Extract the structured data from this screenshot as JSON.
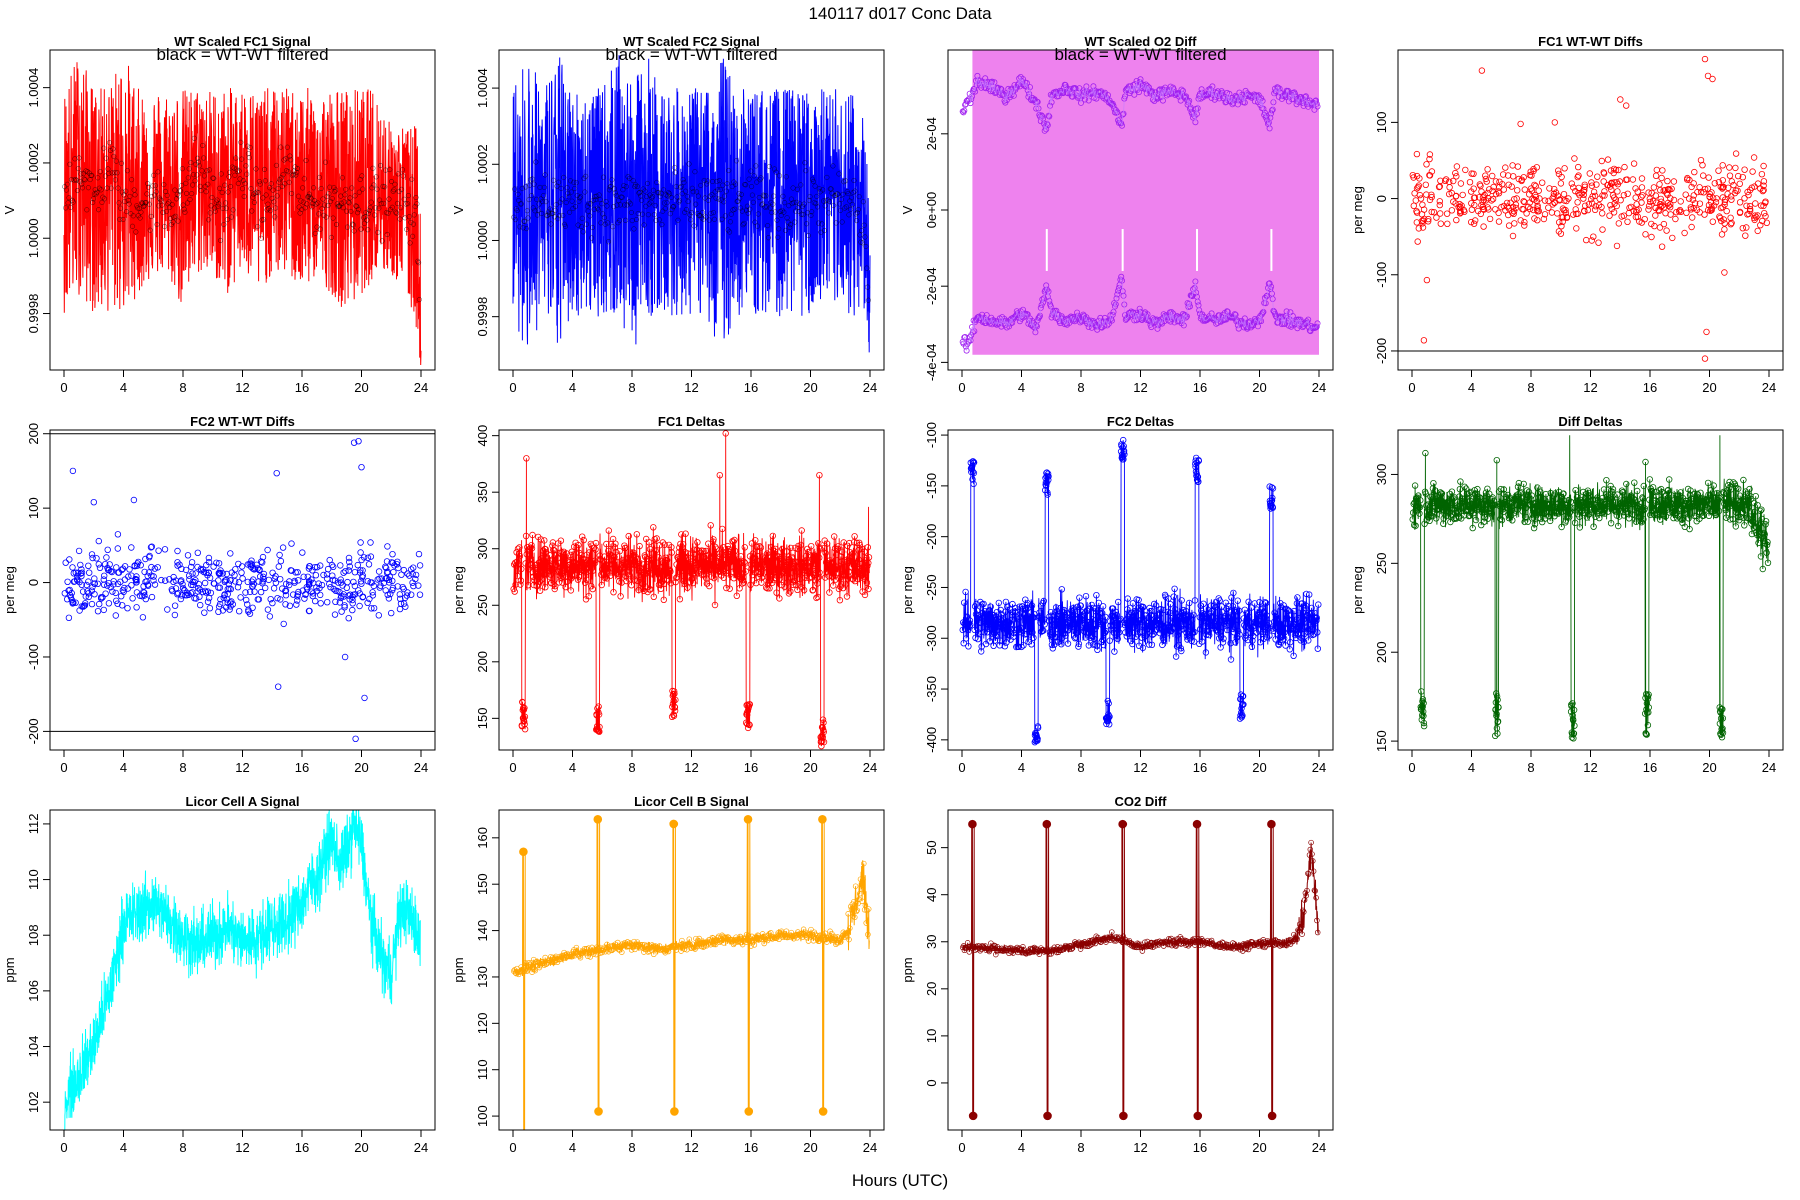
{
  "page": {
    "title": "140117   d017   Conc Data",
    "xlabel": "Hours (UTC)"
  },
  "chart_data": [
    {
      "type": "line",
      "title": "WT Scaled FC1 Signal",
      "note": "black = WT-WT filtered",
      "ylabel": "V",
      "xlim": [
        0,
        24
      ],
      "ylim": [
        0.99965,
        1.0005
      ],
      "xticks": [
        0,
        4,
        8,
        12,
        16,
        20,
        24
      ],
      "yticks": [
        0.9998,
        1.0,
        1.0002,
        1.0004
      ],
      "ytick_labels": [
        "0.9998",
        "1.0000",
        "1.0002",
        "1.0004"
      ],
      "color": "#ff0000",
      "series": [
        {
          "name": "",
          "x": [
            0,
            1,
            2,
            3,
            4,
            5,
            6,
            7,
            8,
            9,
            10,
            11,
            12,
            13,
            14,
            15,
            16,
            17,
            18,
            19,
            20,
            21,
            22,
            23,
            23.7,
            24
          ],
          "values": [
            1.0001,
            1.0002,
            1.0001,
            1.0002,
            1.0001,
            1.0001,
            1.0001,
            1.0001,
            1.0001,
            1.0002,
            1.0001,
            1.0001,
            1.0002,
            1.0001,
            1.0001,
            1.0002,
            1.0001,
            1.0001,
            1.0001,
            1.0001,
            1.0001,
            1.0001,
            1.0001,
            1.0001,
            1.00005,
            0.99975
          ]
        }
      ],
      "band": {
        "low": [
          0.9998,
          0.99985,
          0.9998,
          0.9998,
          0.9998,
          0.99985,
          0.9999,
          0.9999,
          0.9998,
          0.9999,
          0.9999,
          0.99985,
          0.9999,
          0.99985,
          0.9999,
          0.9999,
          0.99985,
          0.9999,
          0.99985,
          0.9998,
          0.99985,
          0.9999,
          0.9999,
          0.99985,
          0.99975,
          0.99965
        ],
        "high": [
          1.0004,
          1.0005,
          1.0004,
          1.0004,
          1.0005,
          1.0004,
          1.0004,
          1.0004,
          1.0004,
          1.0004,
          1.0004,
          1.0004,
          1.0004,
          1.0004,
          1.0004,
          1.0004,
          1.0004,
          1.0004,
          1.0004,
          1.0004,
          1.0004,
          1.0004,
          1.0003,
          1.0003,
          1.0003,
          1.0002
        ]
      },
      "points_color": "#000000"
    },
    {
      "type": "line",
      "title": "WT Scaled FC2 Signal",
      "note": "black = WT-WT filtered",
      "ylabel": "V",
      "xlim": [
        0,
        24
      ],
      "ylim": [
        0.99966,
        1.0005
      ],
      "xticks": [
        0,
        4,
        8,
        12,
        16,
        20,
        24
      ],
      "yticks": [
        0.9998,
        1.0,
        1.0002,
        1.0004
      ],
      "ytick_labels": [
        "0.9998",
        "1.0000",
        "1.0002",
        "1.0004"
      ],
      "color": "#0000ff",
      "series": [
        {
          "name": "",
          "x": [
            0,
            1,
            2,
            3,
            4,
            5,
            6,
            7,
            8,
            9,
            10,
            11,
            12,
            13,
            14,
            15,
            16,
            17,
            18,
            19,
            20,
            21,
            22,
            23,
            23.7,
            24
          ],
          "values": [
            1.0001,
            1.0001,
            1.0001,
            1.0001,
            1.0001,
            1.0001,
            1.0001,
            1.0001,
            1.0001,
            1.0001,
            1.0001,
            1.0001,
            1.0001,
            1.0001,
            1.0001,
            1.0001,
            1.0001,
            1.0001,
            1.0001,
            1.0001,
            1.0001,
            1.0001,
            1.0001,
            1.0001,
            1.0,
            0.9998
          ]
        }
      ],
      "band": {
        "low": [
          0.9998,
          0.9997,
          0.9998,
          0.9997,
          0.9998,
          0.9998,
          0.9998,
          0.9998,
          0.9997,
          0.9998,
          0.9998,
          0.9998,
          0.9998,
          0.9998,
          0.9997,
          0.9998,
          0.9998,
          0.9998,
          0.9998,
          0.9998,
          0.9998,
          0.9998,
          0.9998,
          0.9998,
          0.9998,
          0.99968
        ],
        "high": [
          1.0004,
          1.0005,
          1.0004,
          1.0005,
          1.0004,
          1.0004,
          1.0004,
          1.0005,
          1.0004,
          1.0005,
          1.0004,
          1.0004,
          1.0004,
          1.0004,
          1.0005,
          1.0004,
          1.0004,
          1.0004,
          1.0004,
          1.0004,
          1.0004,
          1.0004,
          1.0004,
          1.0004,
          1.0003,
          1.0002
        ]
      },
      "points_color": "#000000"
    },
    {
      "type": "line",
      "title": "WT Scaled O2 Diff",
      "note": "black = WT-WT filtered",
      "ylabel": "V",
      "xlim": [
        0,
        24
      ],
      "ylim": [
        -0.00042,
        0.00042
      ],
      "xticks": [
        0,
        4,
        8,
        12,
        16,
        20,
        24
      ],
      "yticks": [
        -0.0004,
        -0.0002,
        0,
        0.0002
      ],
      "ytick_labels": [
        "-4e-04",
        "-2e-04",
        "0e+00",
        "2e-04"
      ],
      "color": "#ee82ee",
      "band": {
        "low": -0.00038,
        "high": 0.00042,
        "start": 0.7,
        "end": 24
      },
      "series": [
        {
          "name": "",
          "x": [
            0,
            0.3,
            0.7,
            1,
            2,
            3,
            4,
            5,
            5.7,
            6,
            7,
            8,
            9,
            10,
            10.7,
            11,
            12,
            13,
            14,
            15,
            15.7,
            16,
            17,
            18,
            19,
            20,
            20.7,
            21,
            22,
            23,
            24
          ],
          "values": [
            0.00025,
            0.00028,
            0.0003,
            0.00034,
            0.00032,
            0.0003,
            0.00034,
            0.00028,
            0.00021,
            0.0003,
            0.00032,
            0.0003,
            0.00031,
            0.00029,
            0.00022,
            0.00031,
            0.00033,
            0.0003,
            0.00031,
            0.0003,
            0.00024,
            0.0003,
            0.00031,
            0.00029,
            0.0003,
            0.00029,
            0.00022,
            0.00031,
            0.0003,
            0.00029,
            0.00027
          ]
        },
        {
          "name": "",
          "x": [
            0,
            0.3,
            0.7,
            1,
            2,
            3,
            4,
            5,
            5.7,
            6,
            7,
            8,
            9,
            10,
            10.7,
            11,
            12,
            13,
            14,
            15,
            15.7,
            16,
            17,
            18,
            19,
            20,
            20.7,
            21,
            22,
            23,
            24
          ],
          "values": [
            -0.00034,
            -0.00036,
            -0.00032,
            -0.00028,
            -0.00029,
            -0.0003,
            -0.00027,
            -0.00031,
            -0.0002,
            -0.00027,
            -0.00029,
            -0.00028,
            -0.0003,
            -0.00029,
            -0.00018,
            -0.00028,
            -0.00027,
            -0.0003,
            -0.00028,
            -0.00029,
            -0.00019,
            -0.00028,
            -0.00029,
            -0.00028,
            -0.0003,
            -0.00029,
            -0.00019,
            -0.00028,
            -0.00029,
            -0.0003,
            -0.00031
          ]
        }
      ],
      "points_color": "#a020f0"
    },
    {
      "type": "scatter",
      "title": "FC1 WT-WT Diffs",
      "ylabel": "per meg",
      "xlim": [
        0,
        24
      ],
      "ylim": [
        -225,
        195
      ],
      "xticks": [
        0,
        4,
        8,
        12,
        16,
        20,
        24
      ],
      "yticks": [
        -200,
        -100,
        0,
        100
      ],
      "ytick_labels": [
        "-200",
        "-100",
        "0",
        "100"
      ],
      "hline": -200,
      "color": "#ff0000",
      "outliers": {
        "x": [
          0.8,
          1.0,
          4.7,
          7.3,
          9.6,
          14.0,
          14.4,
          19.7,
          19.9,
          20.2,
          19.8,
          19.7,
          21.0
        ],
        "values": [
          -186,
          -107,
          168,
          98,
          100,
          130,
          122,
          183,
          161,
          157,
          -175,
          -210,
          -97
        ]
      }
    },
    {
      "type": "scatter",
      "title": "FC2 WT-WT Diffs",
      "ylabel": "per meg",
      "xlim": [
        0,
        24
      ],
      "ylim": [
        -225,
        205
      ],
      "xticks": [
        0,
        4,
        8,
        12,
        16,
        20,
        24
      ],
      "yticks": [
        -200,
        -100,
        0,
        100,
        200
      ],
      "ytick_labels": [
        "-200",
        "-100",
        "0",
        "100",
        "200"
      ],
      "hlines": [
        -200,
        200
      ],
      "color": "#0000ff",
      "outliers": {
        "x": [
          0.6,
          2.0,
          4.7,
          14.3,
          14.4,
          18.9,
          19.5,
          19.8,
          20.0,
          20.2,
          19.6
        ],
        "values": [
          150,
          108,
          111,
          147,
          -140,
          -100,
          188,
          190,
          155,
          -155,
          -210
        ]
      }
    },
    {
      "type": "line",
      "title": "FC1 Deltas",
      "ylabel": "per meg",
      "xlim": [
        0,
        24
      ],
      "ylim": [
        122,
        405
      ],
      "xticks": [
        0,
        4,
        8,
        12,
        16,
        20,
        24
      ],
      "yticks": [
        150,
        200,
        250,
        300,
        350,
        400
      ],
      "ytick_labels": [
        "150",
        "200",
        "250",
        "300",
        "350",
        "400"
      ],
      "color": "#ff0000",
      "baseline": 285,
      "dips": [
        {
          "x": 0.7,
          "min": 140
        },
        {
          "x": 5.7,
          "min": 138
        },
        {
          "x": 10.8,
          "min": 150
        },
        {
          "x": 15.8,
          "min": 140
        },
        {
          "x": 20.8,
          "min": 125
        }
      ],
      "spikes": [
        {
          "x": 0.9,
          "max": 380
        },
        {
          "x": 14.3,
          "max": 402
        },
        {
          "x": 13.9,
          "max": 365
        },
        {
          "x": 20.6,
          "max": 365
        },
        {
          "x": 23.9,
          "max": 337
        }
      ]
    },
    {
      "type": "line",
      "title": "FC2 Deltas",
      "ylabel": "per meg",
      "xlim": [
        0,
        24
      ],
      "ylim": [
        -410,
        -95
      ],
      "xticks": [
        0,
        4,
        8,
        12,
        16,
        20,
        24
      ],
      "yticks": [
        -400,
        -350,
        -300,
        -250,
        -200,
        -150,
        -100
      ],
      "ytick_labels": [
        "-400",
        "-350",
        "-300",
        "-250",
        "-200",
        "-150",
        "-100"
      ],
      "color": "#0000ff",
      "baseline": -285,
      "peaks": [
        {
          "x": 0.7,
          "max": -125
        },
        {
          "x": 5.7,
          "max": -135
        },
        {
          "x": 10.8,
          "max": -102
        },
        {
          "x": 15.8,
          "max": -122
        },
        {
          "x": 20.8,
          "max": -150
        }
      ],
      "dips": [
        {
          "x": 5.0,
          "min": -405
        },
        {
          "x": 9.8,
          "min": -385
        },
        {
          "x": 18.8,
          "min": -380
        }
      ]
    },
    {
      "type": "line",
      "title": "Diff Deltas",
      "ylabel": "per meg",
      "xlim": [
        0,
        24
      ],
      "ylim": [
        145,
        325
      ],
      "xticks": [
        0,
        4,
        8,
        12,
        16,
        20,
        24
      ],
      "yticks": [
        150,
        200,
        250,
        300
      ],
      "ytick_labels": [
        "150",
        "200",
        "250",
        "300"
      ],
      "color": "#006400",
      "baseline": 283,
      "dips": [
        {
          "x": 0.7,
          "min": 158
        },
        {
          "x": 5.7,
          "min": 152
        },
        {
          "x": 10.8,
          "min": 150
        },
        {
          "x": 15.8,
          "min": 153
        },
        {
          "x": 20.8,
          "min": 148
        }
      ],
      "spikes": [
        {
          "x": 0.9,
          "max": 312
        },
        {
          "x": 5.7,
          "max": 308
        },
        {
          "x": 10.6,
          "max": 322
        },
        {
          "x": 15.7,
          "max": 307
        },
        {
          "x": 20.7,
          "max": 322
        }
      ]
    },
    {
      "type": "line",
      "title": "Licor Cell A Signal",
      "ylabel": "ppm",
      "xlim": [
        0,
        24
      ],
      "ylim": [
        101,
        112.5
      ],
      "xticks": [
        0,
        4,
        8,
        12,
        16,
        20,
        24
      ],
      "yticks": [
        102,
        104,
        106,
        108,
        110,
        112
      ],
      "ytick_labels": [
        "102",
        "104",
        "106",
        "108",
        "110",
        "112"
      ],
      "color": "#00ffff",
      "series": [
        {
          "name": "",
          "x": [
            0,
            0.5,
            1,
            1.5,
            2,
            2.5,
            3,
            3.5,
            4,
            5,
            6,
            7,
            8,
            9,
            10,
            11,
            12,
            13,
            14,
            15,
            16,
            16.5,
            17,
            17.5,
            18,
            18.5,
            19,
            19.5,
            20,
            20.5,
            21,
            21.5,
            22,
            22.5,
            23,
            23.5,
            24
          ],
          "values": [
            102,
            102.5,
            103,
            103.5,
            104,
            105,
            105.8,
            107,
            108.5,
            108.8,
            109.2,
            108.6,
            108,
            107.6,
            108,
            108.3,
            107.8,
            107.9,
            108.3,
            108.5,
            109.2,
            109.8,
            110,
            110.8,
            111.5,
            110.5,
            111,
            112,
            111.2,
            109,
            107.8,
            107,
            106.6,
            108.6,
            109,
            108.4,
            107.8
          ]
        }
      ],
      "noise": 0.8
    },
    {
      "type": "line",
      "title": "Licor Cell B Signal",
      "ylabel": "ppm",
      "xlim": [
        0,
        24
      ],
      "ylim": [
        97,
        166
      ],
      "xticks": [
        0,
        4,
        8,
        12,
        16,
        20,
        24
      ],
      "yticks": [
        100,
        110,
        120,
        130,
        140,
        150,
        160
      ],
      "ytick_labels": [
        "100",
        "110",
        "120",
        "130",
        "140",
        "150",
        "160"
      ],
      "color": "#ffa500",
      "baseline_series": {
        "x": [
          0,
          2,
          4,
          6,
          8,
          10,
          12,
          14,
          16,
          18,
          20,
          22,
          22.5,
          23,
          23.5,
          24
        ],
        "values": [
          131,
          133,
          135,
          136,
          137,
          136,
          137,
          138,
          138,
          139,
          139,
          138,
          140,
          145,
          152,
          137
        ]
      },
      "spikes": [
        {
          "x": 0.7,
          "max": 157,
          "min": 96
        },
        {
          "x": 5.7,
          "max": 164,
          "min": 101
        },
        {
          "x": 10.8,
          "max": 163,
          "min": 101
        },
        {
          "x": 15.8,
          "max": 164,
          "min": 101
        },
        {
          "x": 20.8,
          "max": 164,
          "min": 101
        }
      ]
    },
    {
      "type": "line",
      "title": "CO2 Diff",
      "ylabel": "ppm",
      "xlim": [
        0,
        24
      ],
      "ylim": [
        -10,
        58
      ],
      "xticks": [
        0,
        4,
        8,
        12,
        16,
        20,
        24
      ],
      "yticks": [
        0,
        10,
        20,
        30,
        40,
        50
      ],
      "ytick_labels": [
        "0",
        "10",
        "20",
        "30",
        "40",
        "50"
      ],
      "color": "#8b0000",
      "baseline_series": {
        "x": [
          0,
          2,
          4,
          6,
          8,
          10,
          12,
          14,
          16,
          18,
          20,
          22,
          22.5,
          23,
          23.5,
          24
        ],
        "values": [
          29,
          28.5,
          28,
          28,
          29.5,
          31,
          29,
          30,
          30,
          29,
          29.5,
          30,
          31,
          36,
          50,
          30
        ]
      },
      "spikes": [
        {
          "x": 0.7,
          "max": 55,
          "min": -7
        },
        {
          "x": 5.7,
          "max": 55,
          "min": -7
        },
        {
          "x": 10.8,
          "max": 55,
          "min": -7
        },
        {
          "x": 15.8,
          "max": 55,
          "min": -7
        },
        {
          "x": 20.8,
          "max": 55,
          "min": -7
        }
      ]
    }
  ]
}
